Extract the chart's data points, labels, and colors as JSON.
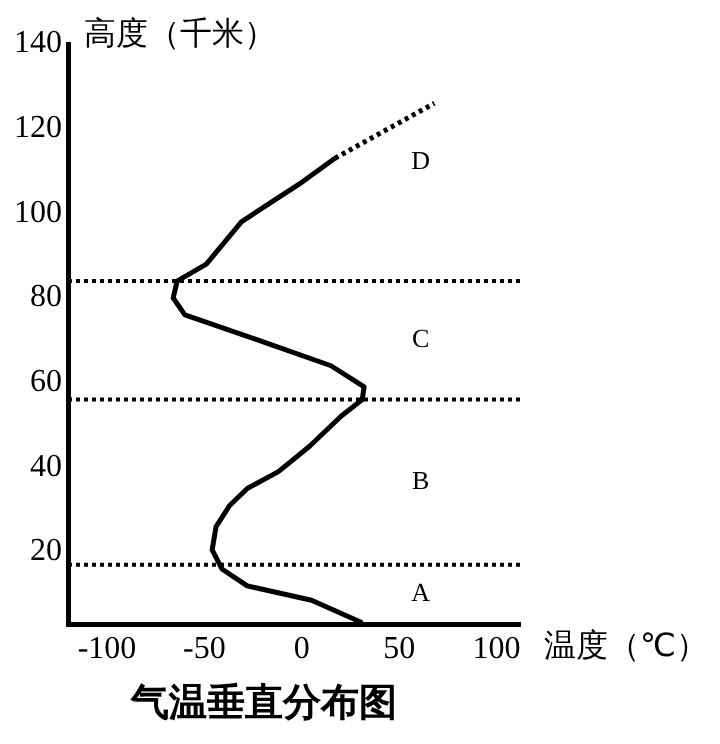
{
  "chart_data": {
    "type": "line",
    "title": "气温垂直分布图",
    "xlabel": "温度（℃）",
    "ylabel": "高度（千米）",
    "xlim": [
      -120,
      112
    ],
    "ylim": [
      3,
      140
    ],
    "xticks": [
      -100,
      -50,
      0,
      50,
      100
    ],
    "yticks": [
      20,
      40,
      60,
      80,
      100,
      120,
      140
    ],
    "grid": false,
    "marker": "none",
    "series": [
      {
        "color": "#000000",
        "line_style": "solid",
        "x": [
          31,
          5,
          -28,
          -41,
          -46,
          -44,
          -37,
          -28,
          -12,
          4,
          20,
          31,
          32,
          15,
          -22,
          -60,
          -66,
          -64,
          -49,
          -31,
          -1,
          17
        ],
        "values": [
          3.3,
          8.6,
          12,
          16,
          20.5,
          26,
          31,
          35,
          39,
          45,
          52,
          56,
          59,
          64,
          70,
          76,
          80,
          84,
          88,
          98,
          107,
          113
        ]
      },
      {
        "color": "#000000",
        "line_style": "dotted",
        "x": [
          17,
          68
        ],
        "values": [
          113,
          126
        ]
      }
    ],
    "ref_lines": [
      {
        "axis": "y",
        "value": 17,
        "line_style": "dotted",
        "color": "#000000"
      },
      {
        "axis": "y",
        "value": 56,
        "line_style": "dotted",
        "color": "#000000"
      },
      {
        "axis": "y",
        "value": 84,
        "line_style": "dotted",
        "color": "#000000"
      }
    ],
    "annotations": [
      "A",
      "B",
      "C",
      "D"
    ]
  }
}
